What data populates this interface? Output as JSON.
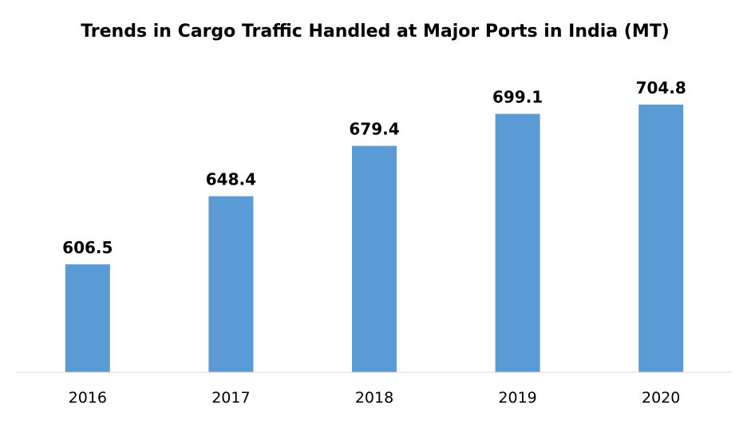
{
  "chart_data": {
    "type": "bar",
    "title": "Trends in Cargo Traffic Handled at Major Ports in India (MT)",
    "categories": [
      "2016",
      "2017",
      "2018",
      "2019",
      "2020"
    ],
    "values": [
      606.5,
      648.4,
      679.4,
      699.1,
      704.8
    ],
    "data_labels": [
      "606.5",
      "648.4",
      "679.4",
      "699.1",
      "704.8"
    ],
    "xlabel": "",
    "ylabel": "",
    "ylim": [
      540,
      720
    ],
    "grid": false,
    "legend": "none",
    "bar_color": "#5b9bd5",
    "axis_color": "#d9d9d9"
  }
}
